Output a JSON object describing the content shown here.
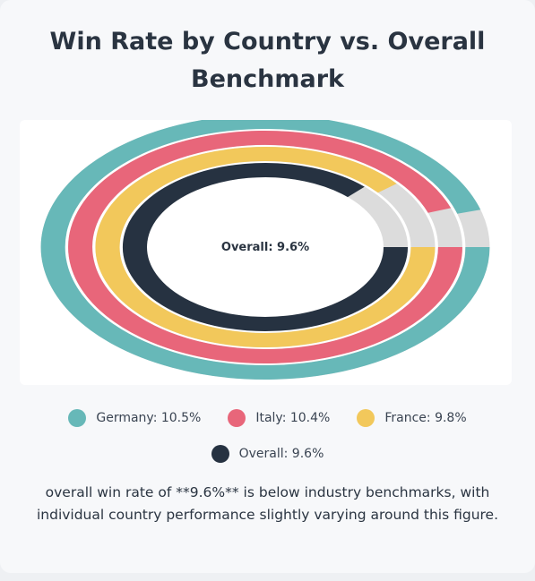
{
  "title": "Win Rate by Country vs. Overall Benchmark",
  "chart_data": {
    "type": "pie",
    "variant": "concentric-ring",
    "center_label": "Overall: 9.6%",
    "series": [
      {
        "name": "Germany",
        "value": 10.5,
        "color": "#67b8b8"
      },
      {
        "name": "Italy",
        "value": 10.4,
        "color": "#e8667a"
      },
      {
        "name": "France",
        "value": 9.8,
        "color": "#f2c85b"
      },
      {
        "name": "Overall",
        "value": 9.6,
        "color": "#263241"
      }
    ],
    "remainder_color": "#dcdcdc",
    "legend": {
      "placement": "bottom",
      "items": [
        {
          "label": "Germany: 10.5%",
          "color": "#67b8b8"
        },
        {
          "label": "Italy: 10.4%",
          "color": "#e8667a"
        },
        {
          "label": "France: 9.8%",
          "color": "#f2c85b"
        },
        {
          "label": "Overall: 9.6%",
          "color": "#263241"
        }
      ]
    }
  },
  "note": "overall win rate of **9.6%** is below industry benchmarks, with individual country performance slightly varying around this figure."
}
